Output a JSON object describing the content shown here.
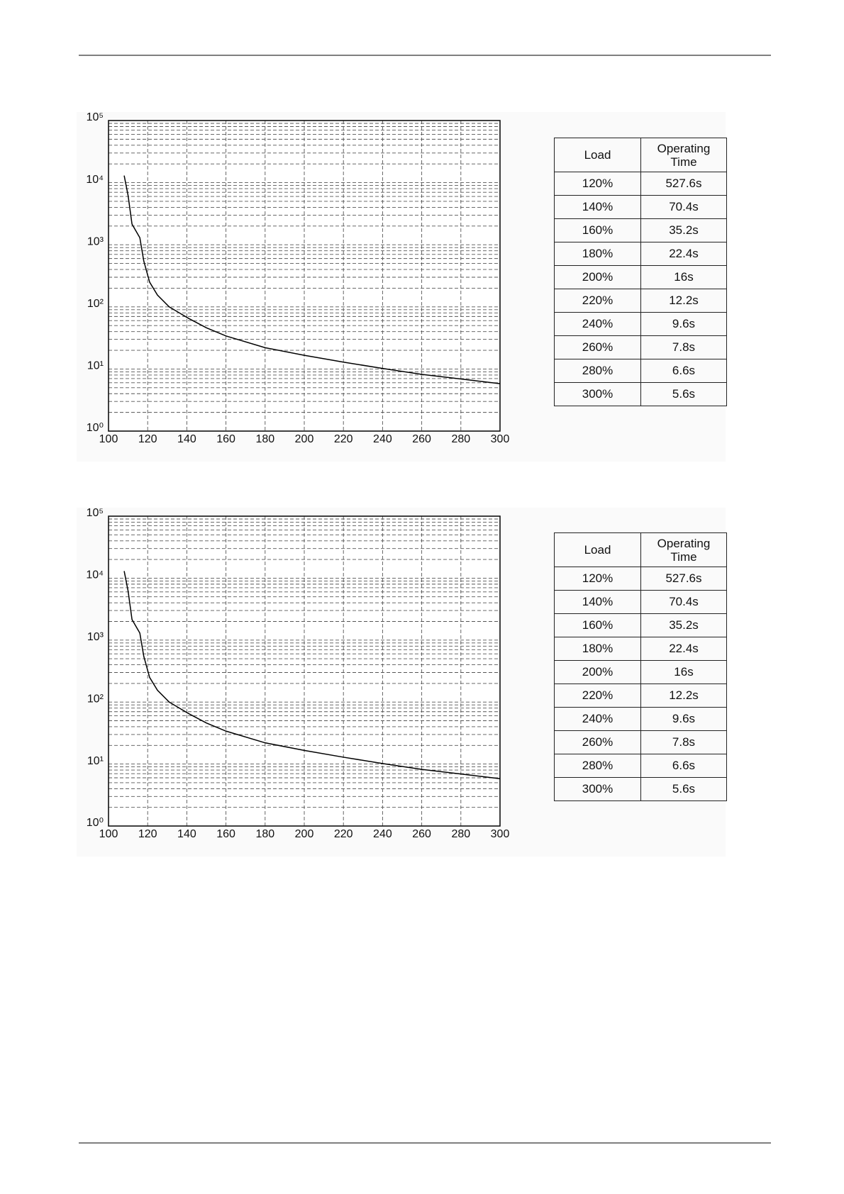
{
  "chart_data": [
    {
      "type": "line",
      "log_y": true,
      "grid": true,
      "color": "#000000",
      "xlim": [
        100,
        300
      ],
      "xticks": [
        100,
        120,
        140,
        160,
        180,
        200,
        220,
        240,
        260,
        280,
        300
      ],
      "ylim": [
        1,
        100000
      ],
      "yticks": [
        {
          "value": 1,
          "label": "10⁰"
        },
        {
          "value": 10,
          "label": "10¹"
        },
        {
          "value": 100,
          "label": "10²"
        },
        {
          "value": 1000,
          "label": "10³"
        },
        {
          "value": 10000,
          "label": "10⁴"
        },
        {
          "value": 100000,
          "label": "10⁵"
        }
      ],
      "minor_yticks": [
        2,
        3,
        4,
        5,
        6,
        7,
        8,
        9,
        20,
        30,
        40,
        50,
        60,
        70,
        80,
        90,
        200,
        300,
        400,
        500,
        600,
        700,
        800,
        900,
        2000,
        3000,
        4000,
        5000,
        6000,
        7000,
        8000,
        9000,
        20000,
        30000,
        40000,
        50000,
        60000,
        70000,
        80000,
        90000
      ],
      "x": [
        108,
        110,
        112,
        116,
        118,
        121,
        125,
        131,
        141,
        150,
        160,
        180,
        200,
        220,
        240,
        260,
        280,
        300
      ],
      "values": [
        13000,
        6200,
        2150,
        1300,
        550,
        250,
        155,
        100,
        65,
        46,
        34,
        22,
        16.6,
        12.9,
        10.2,
        8.2,
        6.9,
        5.8
      ]
    },
    {
      "type": "line",
      "log_y": true,
      "grid": true,
      "color": "#000000",
      "xlim": [
        100,
        300
      ],
      "xticks": [
        100,
        120,
        140,
        160,
        180,
        200,
        220,
        240,
        260,
        280,
        300
      ],
      "ylim": [
        1,
        100000
      ],
      "yticks": [
        {
          "value": 1,
          "label": "10⁰"
        },
        {
          "value": 10,
          "label": "10¹"
        },
        {
          "value": 100,
          "label": "10²"
        },
        {
          "value": 1000,
          "label": "10³"
        },
        {
          "value": 10000,
          "label": "10⁴"
        },
        {
          "value": 100000,
          "label": "10⁵"
        }
      ],
      "minor_yticks": [
        2,
        3,
        4,
        5,
        6,
        7,
        8,
        9,
        20,
        30,
        40,
        50,
        60,
        70,
        80,
        90,
        200,
        300,
        400,
        500,
        600,
        700,
        800,
        900,
        2000,
        3000,
        4000,
        5000,
        6000,
        7000,
        8000,
        9000,
        20000,
        30000,
        40000,
        50000,
        60000,
        70000,
        80000,
        90000
      ],
      "x": [
        108,
        110,
        112,
        116,
        118,
        121,
        125,
        131,
        141,
        150,
        160,
        180,
        200,
        220,
        240,
        260,
        280,
        300
      ],
      "values": [
        13000,
        6200,
        2150,
        1300,
        550,
        250,
        155,
        100,
        65,
        46,
        34,
        22,
        16.6,
        12.9,
        10.2,
        8.2,
        6.9,
        5.8
      ]
    }
  ],
  "tables": [
    {
      "header": [
        "Load",
        "Operating Time"
      ],
      "rows": [
        [
          "120%",
          "527.6s"
        ],
        [
          "140%",
          "70.4s"
        ],
        [
          "160%",
          "35.2s"
        ],
        [
          "180%",
          "22.4s"
        ],
        [
          "200%",
          "16s"
        ],
        [
          "220%",
          "12.2s"
        ],
        [
          "240%",
          "9.6s"
        ],
        [
          "260%",
          "7.8s"
        ],
        [
          "280%",
          "6.6s"
        ],
        [
          "300%",
          "5.6s"
        ]
      ]
    },
    {
      "header": [
        "Load",
        "Operating Time"
      ],
      "rows": [
        [
          "120%",
          "527.6s"
        ],
        [
          "140%",
          "70.4s"
        ],
        [
          "160%",
          "35.2s"
        ],
        [
          "180%",
          "22.4s"
        ],
        [
          "200%",
          "16s"
        ],
        [
          "220%",
          "12.2s"
        ],
        [
          "240%",
          "9.6s"
        ],
        [
          "260%",
          "7.8s"
        ],
        [
          "280%",
          "6.6s"
        ],
        [
          "300%",
          "5.6s"
        ]
      ]
    }
  ]
}
